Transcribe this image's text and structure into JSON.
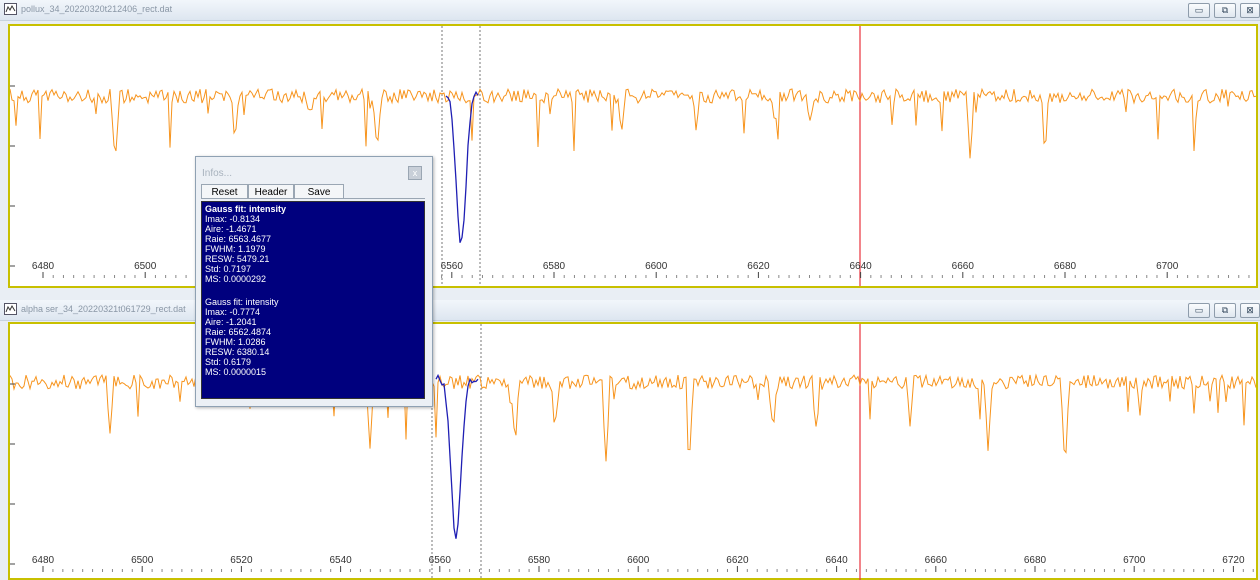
{
  "windows": [
    {
      "title": "pollux_34_20220320t212406_rect.dat",
      "x_ticks": [
        "6480",
        "6500",
        "6520",
        "6540",
        "6560",
        "6580",
        "6600",
        "6620",
        "6640",
        "6660",
        "6680",
        "6700"
      ]
    },
    {
      "title": "alpha ser_34_20220321t061729_rect.dat",
      "x_ticks": [
        "6480",
        "6500",
        "6520",
        "6540",
        "6560",
        "6580",
        "6600",
        "6620",
        "6640",
        "6660",
        "6680",
        "6700",
        "6720"
      ]
    }
  ],
  "window_buttons": {
    "minimize": "▭",
    "restore": "⧉",
    "close": "⊠"
  },
  "infos": {
    "title": "Infos...",
    "close": "x",
    "buttons": {
      "reset": "Reset",
      "header": "Header",
      "save": "Save"
    },
    "fit1": {
      "heading": "Gauss fit:  intensity",
      "imax": "Imax:  -0.8134",
      "aire": "Aire:  -1.4671",
      "raie": "Raie:  6563.4677",
      "fwhm": "FWHM:  1.1979",
      "resw": "RESW:  5479.21",
      "std": "Std:  0.7197",
      "ms": "MS:  0.0000292"
    },
    "fit2": {
      "heading": "Gauss fit:  intensity",
      "imax": "Imax:  -0.7774",
      "aire": "Aire:  -1.2041",
      "raie": "Raie:  6562.4874",
      "fwhm": "FWHM:  1.0286",
      "resw": "RESW:  6380.14",
      "std": "Std:  0.6179",
      "ms": "MS:  0.0000015"
    }
  },
  "colors": {
    "spectrum": "#f7941d",
    "fit": "#1f1fb4",
    "marker": "#e8323c",
    "frame": "#c8c000",
    "info_bg": "#00007e"
  }
}
